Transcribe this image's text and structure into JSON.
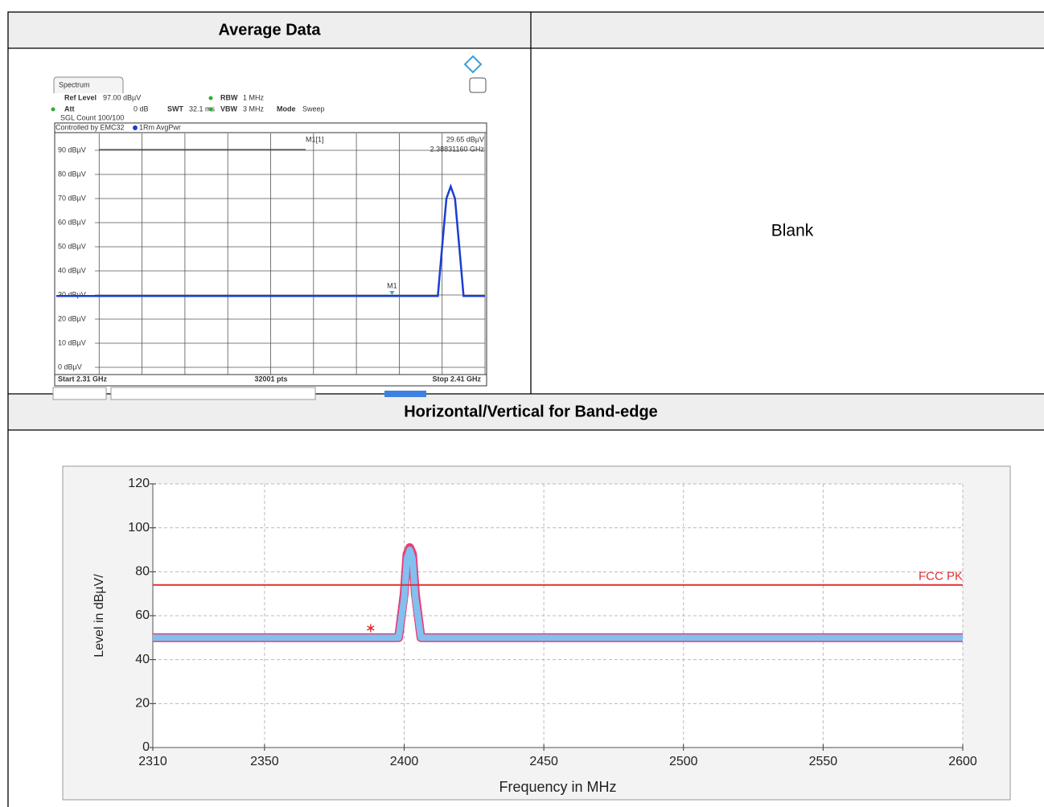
{
  "table": {
    "header_left": "Average Data",
    "blank": "Blank",
    "section": "Horizontal/Vertical for Band-edge"
  },
  "spectrum": {
    "type": "line",
    "tab": "Spectrum",
    "ref_level_label": "Ref Level",
    "ref_level": "97.00 dBµV",
    "att_label": "Att",
    "att": "0 dB",
    "swt_label": "SWT",
    "swt": "32.1 ms",
    "rbw_label": "RBW",
    "rbw": "1 MHz",
    "vbw_label": "VBW",
    "vbw": "3 MHz",
    "mode_label": "Mode",
    "mode": "Sweep",
    "count": "SGL Count 100/100",
    "controlled": "Controlled by EMC32",
    "trace_name": "1Rm AvgPwr",
    "marker": {
      "name": "M1",
      "readout": "M1[1]",
      "level": "29.65 dBµV",
      "freq": "2.38831160 GHz",
      "x": 2.3883116,
      "y": 29.65
    },
    "start": "Start 2.31 GHz",
    "points": "32001 pts",
    "stop": "Stop 2.41 GHz",
    "xlim": [
      2.31,
      2.41
    ],
    "ylim": [
      0,
      97
    ],
    "yticks": [
      {
        "value": 0,
        "label": "0 dBµV"
      },
      {
        "value": 10,
        "label": "10 dBµV"
      },
      {
        "value": 20,
        "label": "20 dBµV"
      },
      {
        "value": 30,
        "label": "30 dBµV"
      },
      {
        "value": 40,
        "label": "40 dBµV"
      },
      {
        "value": 50,
        "label": "50 dBµV"
      },
      {
        "value": 60,
        "label": "60 dBµV"
      },
      {
        "value": 70,
        "label": "70 dBµV"
      },
      {
        "value": 80,
        "label": "80 dBµV"
      },
      {
        "value": 90,
        "label": "90 dBµV"
      }
    ],
    "x": [
      2.31,
      2.399,
      2.4,
      2.401,
      2.402,
      2.403,
      2.404,
      2.405,
      2.41
    ],
    "values": [
      29.6,
      29.6,
      50,
      70,
      75,
      70,
      50,
      29.6,
      29.6
    ],
    "color": "#1a3fd0"
  },
  "chart": {
    "type": "line",
    "xlabel": "Frequency in MHz",
    "ylabel": "Level in dBµV/",
    "xlim": [
      2310,
      2600
    ],
    "ylim": [
      0,
      120
    ],
    "xticks": [
      2310,
      2350,
      2400,
      2450,
      2500,
      2550,
      2600
    ],
    "yticks": [
      0,
      20,
      40,
      60,
      80,
      100,
      120
    ],
    "grid": true,
    "limit": {
      "name": "FCC PK",
      "value": 74,
      "color": "#e03030"
    },
    "peak_marker": {
      "x": 2388,
      "y": 54,
      "color": "#e02020"
    },
    "series": [
      {
        "color": "#e8407a",
        "x": [
          2310,
          2398,
          2400,
          2401,
          2402,
          2403,
          2404,
          2406,
          2600
        ],
        "values": [
          50,
          50,
          70,
          88,
          91,
          88,
          70,
          50,
          50
        ]
      },
      {
        "color": "#82c0f0",
        "x": [
          2310,
          2398,
          2400,
          2401,
          2402,
          2403,
          2404,
          2406,
          2600
        ],
        "values": [
          50,
          50,
          68,
          86,
          90,
          86,
          68,
          50,
          50
        ]
      }
    ]
  }
}
